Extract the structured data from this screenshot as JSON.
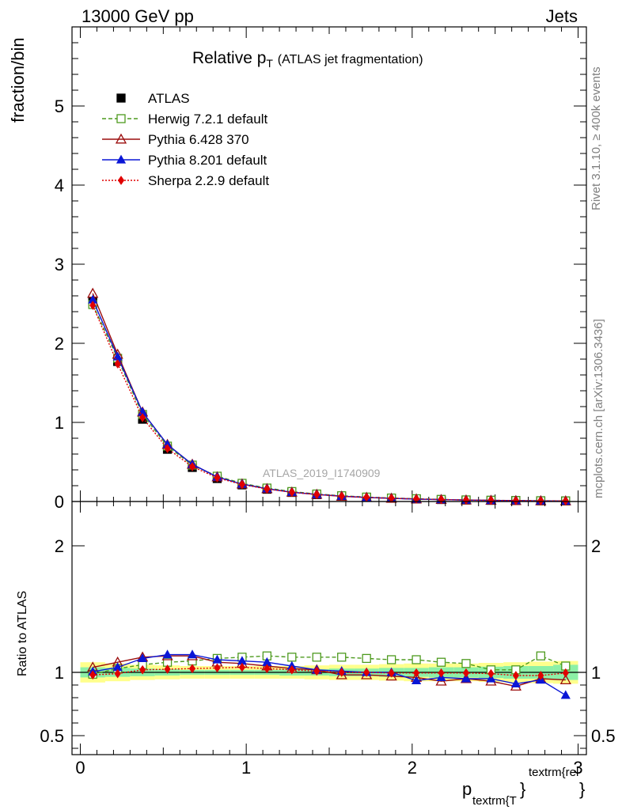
{
  "header": {
    "left": "13000 GeV pp",
    "right": "Jets"
  },
  "side_labels": {
    "rivet": "Rivet 3.1.10, ≥ 400k events",
    "mcplots": "mcplots.cern.ch [arXiv:1306.3436]"
  },
  "chart_data": [
    {
      "type": "line",
      "title_main": "Relative p",
      "title_sub": "T",
      "title_rest": "(ATLAS jet fragmentation)",
      "ylabel": "fraction/bin",
      "watermark": "ATLAS_2019_I1740909",
      "xlim": [
        -0.05,
        3.05
      ],
      "ylim": [
        0,
        6
      ],
      "yticks": [
        0,
        1,
        2,
        3,
        4,
        5
      ],
      "ytick_labels": [
        "0",
        "1",
        "2",
        "3",
        "4",
        "5"
      ],
      "grid": false,
      "legend_position": "top-left",
      "x": [
        0.075,
        0.225,
        0.375,
        0.525,
        0.675,
        0.825,
        0.975,
        1.125,
        1.275,
        1.425,
        1.575,
        1.725,
        1.875,
        2.025,
        2.175,
        2.325,
        2.475,
        2.625,
        2.775,
        2.925
      ],
      "series": [
        {
          "name": "ATLAS",
          "color": "#000000",
          "marker": "filled-square",
          "line": "none",
          "values": [
            2.53,
            1.77,
            1.04,
            0.66,
            0.43,
            0.29,
            0.21,
            0.155,
            0.115,
            0.087,
            0.067,
            0.052,
            0.041,
            0.032,
            0.025,
            0.019,
            0.015,
            0.012,
            0.009,
            0.007
          ]
        },
        {
          "name": "Herwig 7.2.1 default",
          "color": "#4d9a1e",
          "marker": "open-square",
          "line": "dashed",
          "values": [
            2.49,
            1.81,
            1.1,
            0.7,
            0.46,
            0.32,
            0.23,
            0.17,
            0.126,
            0.095,
            0.073,
            0.056,
            0.044,
            0.035,
            0.026,
            0.02,
            0.0153,
            0.0122,
            0.0099,
            0.0073
          ]
        },
        {
          "name": "Pythia 6.428 370",
          "color": "#9b0d0d",
          "marker": "open-triangle",
          "line": "solid",
          "values": [
            2.63,
            1.86,
            1.13,
            0.72,
            0.47,
            0.31,
            0.22,
            0.161,
            0.117,
            0.089,
            0.066,
            0.051,
            0.04,
            0.031,
            0.024,
            0.018,
            0.014,
            0.0107,
            0.0085,
            0.0066
          ]
        },
        {
          "name": "Pythia 8.201 default",
          "color": "#0a16d6",
          "marker": "filled-triangle",
          "line": "solid",
          "values": [
            2.55,
            1.83,
            1.13,
            0.72,
            0.47,
            0.31,
            0.22,
            0.162,
            0.118,
            0.089,
            0.068,
            0.052,
            0.041,
            0.03,
            0.024,
            0.018,
            0.0143,
            0.011,
            0.0085,
            0.0058
          ]
        },
        {
          "name": "Sherpa 2.2.9 default",
          "color": "#e00000",
          "marker": "filled-diamond",
          "line": "dotted",
          "values": [
            2.48,
            1.74,
            1.06,
            0.67,
            0.44,
            0.3,
            0.215,
            0.158,
            0.117,
            0.088,
            0.067,
            0.052,
            0.041,
            0.032,
            0.025,
            0.019,
            0.0147,
            0.0117,
            0.0088,
            0.007
          ]
        }
      ]
    },
    {
      "type": "line",
      "ylabel": "Ratio to ATLAS",
      "xlabel_main": "p",
      "xlabel_sub": "textrm{T",
      "xlabel_sup": "textrm{rel",
      "xlabel_brace1": "}",
      "xlabel_brace2": "}",
      "xlim": [
        -0.05,
        3.05
      ],
      "ylim": [
        0.35,
        2.35
      ],
      "yticks": [
        0.5,
        1,
        2
      ],
      "ytick_labels": [
        "0.5",
        "1",
        "2"
      ],
      "xticks": [
        0,
        1,
        2,
        3
      ],
      "xtick_labels": [
        "0",
        "1",
        "2",
        "3"
      ],
      "x": [
        0.075,
        0.225,
        0.375,
        0.525,
        0.675,
        0.825,
        0.975,
        1.125,
        1.275,
        1.425,
        1.575,
        1.725,
        1.875,
        2.025,
        2.175,
        2.325,
        2.475,
        2.625,
        2.775,
        2.925
      ],
      "band_outer": [
        0.08,
        0.07,
        0.06,
        0.055,
        0.05,
        0.05,
        0.05,
        0.05,
        0.05,
        0.055,
        0.06,
        0.06,
        0.065,
        0.07,
        0.07,
        0.07,
        0.075,
        0.08,
        0.085,
        0.09
      ],
      "band_inner": [
        0.04,
        0.035,
        0.03,
        0.025,
        0.02,
        0.02,
        0.02,
        0.02,
        0.025,
        0.025,
        0.03,
        0.03,
        0.035,
        0.035,
        0.04,
        0.04,
        0.045,
        0.05,
        0.05,
        0.06
      ],
      "band_colors": {
        "outer": "#ffff8c",
        "inner": "#8cf0a6"
      },
      "series": [
        {
          "name": "Herwig 7.2.1 default",
          "color": "#4d9a1e",
          "marker": "open-square",
          "line": "dashed",
          "values": [
            0.985,
            1.03,
            1.06,
            1.08,
            1.09,
            1.11,
            1.12,
            1.13,
            1.12,
            1.12,
            1.12,
            1.11,
            1.1,
            1.1,
            1.08,
            1.07,
            1.02,
            1.02,
            1.13,
            1.05
          ]
        },
        {
          "name": "Pythia 6.428 370",
          "color": "#9b0d0d",
          "marker": "open-triangle",
          "line": "solid",
          "values": [
            1.04,
            1.08,
            1.12,
            1.13,
            1.13,
            1.08,
            1.07,
            1.05,
            1.03,
            1.02,
            0.98,
            0.98,
            0.97,
            0.96,
            0.93,
            0.95,
            0.93,
            0.89,
            0.95,
            0.94
          ]
        },
        {
          "name": "Pythia 8.201 default",
          "color": "#0a16d6",
          "marker": "filled-triangle",
          "line": "solid",
          "values": [
            1.005,
            1.04,
            1.11,
            1.14,
            1.14,
            1.1,
            1.09,
            1.08,
            1.05,
            1.02,
            1.01,
            1.0,
            1.0,
            0.935,
            0.96,
            0.95,
            0.95,
            0.91,
            0.94,
            0.82
          ]
        },
        {
          "name": "Sherpa 2.2.9 default",
          "color": "#e00000",
          "marker": "filled-diamond",
          "line": "dotted",
          "values": [
            0.98,
            0.99,
            1.02,
            1.025,
            1.03,
            1.035,
            1.04,
            1.03,
            1.02,
            1.01,
            1.0,
            1.0,
            0.995,
            0.995,
            0.995,
            0.995,
            0.99,
            0.975,
            0.975,
            0.995
          ]
        }
      ]
    }
  ]
}
